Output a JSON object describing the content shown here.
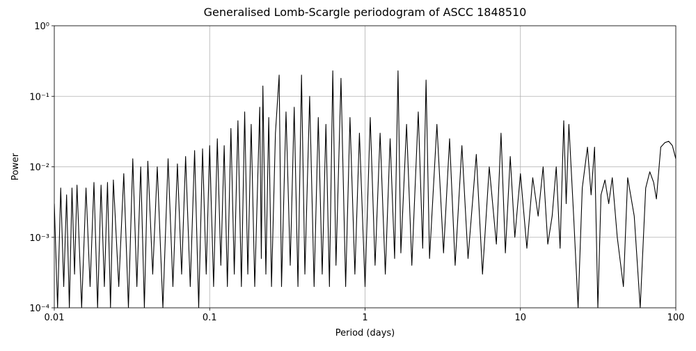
{
  "chart_data": {
    "type": "line",
    "title": "Generalised Lomb-Scargle periodogram of ASCC 1848510",
    "xlabel": "Period (days)",
    "ylabel": "Power",
    "xscale": "log",
    "yscale": "log",
    "grid": true,
    "xlim": [
      0.01,
      100
    ],
    "ylim": [
      0.0001,
      1
    ],
    "xticks": [
      0.01,
      0.1,
      1,
      10,
      100
    ],
    "yticks": [
      {
        "value": 0.0001,
        "label": "10⁻⁴"
      },
      {
        "value": 0.001,
        "label": "10⁻³"
      },
      {
        "value": 0.01,
        "label": "10⁻²"
      },
      {
        "value": 0.1,
        "label": "10⁻¹"
      },
      {
        "value": 1,
        "label": "10⁰"
      }
    ],
    "color": "#000000",
    "x": [
      0.01,
      0.0105,
      0.011,
      0.0115,
      0.012,
      0.0125,
      0.013,
      0.0135,
      0.014,
      0.015,
      0.016,
      0.017,
      0.018,
      0.019,
      0.02,
      0.021,
      0.022,
      0.023,
      0.024,
      0.026,
      0.028,
      0.03,
      0.032,
      0.034,
      0.036,
      0.038,
      0.04,
      0.043,
      0.046,
      0.05,
      0.054,
      0.058,
      0.062,
      0.066,
      0.07,
      0.075,
      0.08,
      0.085,
      0.09,
      0.095,
      0.1,
      0.106,
      0.112,
      0.118,
      0.124,
      0.13,
      0.137,
      0.144,
      0.152,
      0.16,
      0.168,
      0.176,
      0.185,
      0.195,
      0.21,
      0.215,
      0.22,
      0.23,
      0.24,
      0.25,
      0.265,
      0.28,
      0.29,
      0.31,
      0.33,
      0.35,
      0.37,
      0.39,
      0.41,
      0.44,
      0.47,
      0.5,
      0.53,
      0.56,
      0.59,
      0.62,
      0.65,
      0.7,
      0.75,
      0.8,
      0.86,
      0.92,
      1,
      1.08,
      1.16,
      1.25,
      1.35,
      1.45,
      1.55,
      1.63,
      1.7,
      1.85,
      2,
      2.2,
      2.35,
      2.47,
      2.6,
      2.9,
      3.2,
      3.5,
      3.8,
      4.2,
      4.6,
      5.2,
      5.7,
      6.3,
      7,
      7.5,
      8,
      8.6,
      9.2,
      10,
      11,
      12,
      13,
      14,
      15,
      16,
      17,
      18,
      19,
      19.7,
      20.5,
      22,
      23.5,
      25,
      27,
      28.5,
      30,
      31.5,
      33,
      35,
      37,
      39,
      42,
      46,
      49,
      54,
      59,
      64,
      68,
      72,
      75,
      80,
      85,
      90,
      95,
      100
    ],
    "values": [
      0.003,
      0.0001,
      0.005,
      0.0002,
      0.004,
      0.0001,
      0.005,
      0.0003,
      0.0055,
      0.0001,
      0.005,
      0.0002,
      0.006,
      0.0001,
      0.0055,
      0.0002,
      0.006,
      0.0001,
      0.0065,
      0.0002,
      0.008,
      0.0001,
      0.013,
      0.0002,
      0.01,
      0.0001,
      0.012,
      0.0003,
      0.01,
      0.0001,
      0.013,
      0.0002,
      0.011,
      0.0003,
      0.014,
      0.0002,
      0.017,
      0.0001,
      0.018,
      0.0003,
      0.02,
      0.0002,
      0.025,
      0.0004,
      0.02,
      0.0002,
      0.035,
      0.0003,
      0.045,
      0.0002,
      0.06,
      0.0003,
      0.04,
      0.0002,
      0.07,
      0.0005,
      0.14,
      0.0003,
      0.05,
      0.0002,
      0.03,
      0.2,
      0.0002,
      0.06,
      0.0004,
      0.07,
      0.0002,
      0.2,
      0.0003,
      0.1,
      0.0002,
      0.05,
      0.0003,
      0.04,
      0.0002,
      0.23,
      0.0004,
      0.18,
      0.0002,
      0.05,
      0.0003,
      0.03,
      0.0002,
      0.05,
      0.0004,
      0.03,
      0.0003,
      0.025,
      0.0005,
      0.23,
      0.0006,
      0.04,
      0.0004,
      0.06,
      0.0007,
      0.17,
      0.0005,
      0.04,
      0.0006,
      0.025,
      0.0004,
      0.02,
      0.0005,
      0.015,
      0.0003,
      0.01,
      0.0008,
      0.03,
      0.0006,
      0.014,
      0.001,
      0.008,
      0.0007,
      0.007,
      0.002,
      0.01,
      0.0008,
      0.002,
      0.01,
      0.0007,
      0.045,
      0.003,
      0.04,
      0.002,
      0.0001,
      0.005,
      0.019,
      0.004,
      0.019,
      0.0001,
      0.004,
      0.0065,
      0.003,
      0.007,
      0.001,
      0.0002,
      0.007,
      0.002,
      0.0001,
      0.005,
      0.0085,
      0.006,
      0.0035,
      0.019,
      0.022,
      0.023,
      0.02,
      0.013
    ]
  }
}
